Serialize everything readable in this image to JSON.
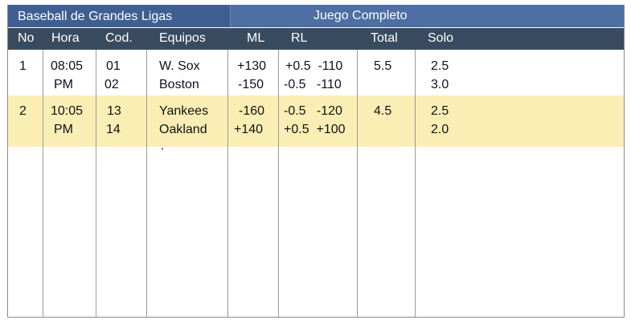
{
  "title_bar": {
    "left_title": "Baseball de Grandes Ligas",
    "center_title": "Juego Completo"
  },
  "columns": [
    "No",
    "Hora",
    "Cod.",
    "Equipos",
    "ML",
    "RL",
    "Total",
    "Solo"
  ],
  "games": [
    {
      "no": "1",
      "time1": "08:05",
      "time2": "PM",
      "code1": "01",
      "code2": "02",
      "team1": "W. Sox",
      "team2": "Boston",
      "ml1": "+130",
      "ml2": "-150",
      "rl1": "+0.5  -110",
      "rl2": "-0.5   -110",
      "total": "5.5",
      "solo1": "2.5",
      "solo2": "3.0"
    },
    {
      "no": "2",
      "time1": "10:05",
      "time2": "PM",
      "code1": "13",
      "code2": "14",
      "team1": "Yankees",
      "team2": "Oakland",
      "ml1": "-160",
      "ml2": "+140",
      "rl1": "-0.5   -120",
      "rl2": "+0.5  +100",
      "total": "4.5",
      "solo1": "2.5",
      "solo2": "2.0"
    }
  ]
}
